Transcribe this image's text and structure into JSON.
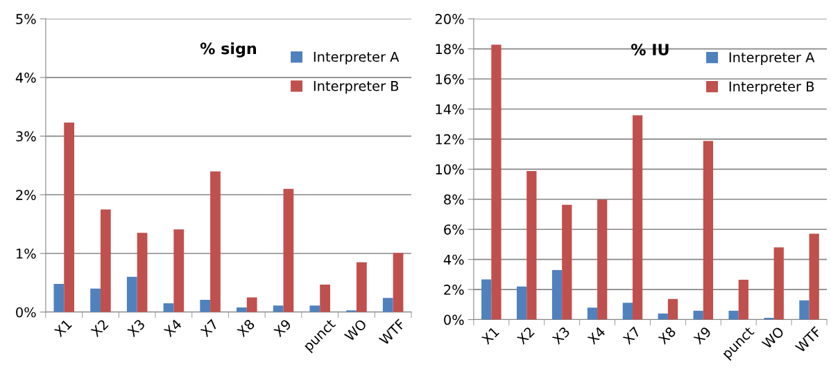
{
  "chart_data": [
    {
      "type": "bar",
      "title": "% sign",
      "categories": [
        "X1",
        "X2",
        "X3",
        "X4",
        "X7",
        "X8",
        "X9",
        "punct",
        "WO",
        "WTF"
      ],
      "series": [
        {
          "name": "Interpreter A",
          "color": "#4f81bd",
          "values": [
            0.48,
            0.4,
            0.6,
            0.15,
            0.21,
            0.08,
            0.11,
            0.11,
            0.03,
            0.24
          ]
        },
        {
          "name": "Interpreter B",
          "color": "#c0504d",
          "values": [
            3.23,
            1.75,
            1.35,
            1.41,
            2.4,
            0.25,
            2.1,
            0.47,
            0.85,
            1.01
          ]
        }
      ],
      "ylim": [
        0,
        5
      ],
      "yticks": [
        {
          "value": 0,
          "label": "0%"
        },
        {
          "value": 1,
          "label": "1%"
        },
        {
          "value": 2,
          "label": "2%"
        },
        {
          "value": 3,
          "label": "3%"
        },
        {
          "value": 4,
          "label": "4%"
        },
        {
          "value": 5,
          "label": "5%"
        }
      ],
      "grid": "y",
      "legend": "top right"
    },
    {
      "type": "bar",
      "title": "% IU",
      "categories": [
        "X1",
        "X2",
        "X3",
        "X4",
        "X7",
        "X8",
        "X9",
        "punct",
        "WO",
        "WTF"
      ],
      "series": [
        {
          "name": "Interpreter A",
          "color": "#4f81bd",
          "values": [
            2.67,
            2.2,
            3.29,
            0.8,
            1.12,
            0.41,
            0.59,
            0.59,
            0.12,
            1.28
          ]
        },
        {
          "name": "Interpreter B",
          "color": "#c0504d",
          "values": [
            18.28,
            9.88,
            7.63,
            7.98,
            13.58,
            1.37,
            11.88,
            2.65,
            4.8,
            5.71
          ]
        }
      ],
      "ylim": [
        0,
        20
      ],
      "yticks": [
        {
          "value": 0,
          "label": "0%"
        },
        {
          "value": 2,
          "label": "2%"
        },
        {
          "value": 4,
          "label": "4%"
        },
        {
          "value": 6,
          "label": "6%"
        },
        {
          "value": 8,
          "label": "8%"
        },
        {
          "value": 10,
          "label": "10%"
        },
        {
          "value": 12,
          "label": "12%"
        },
        {
          "value": 14,
          "label": "14%"
        },
        {
          "value": 16,
          "label": "16%"
        },
        {
          "value": 18,
          "label": "18%"
        },
        {
          "value": 20,
          "label": "20%"
        }
      ],
      "grid": "y",
      "legend": "top right"
    }
  ]
}
